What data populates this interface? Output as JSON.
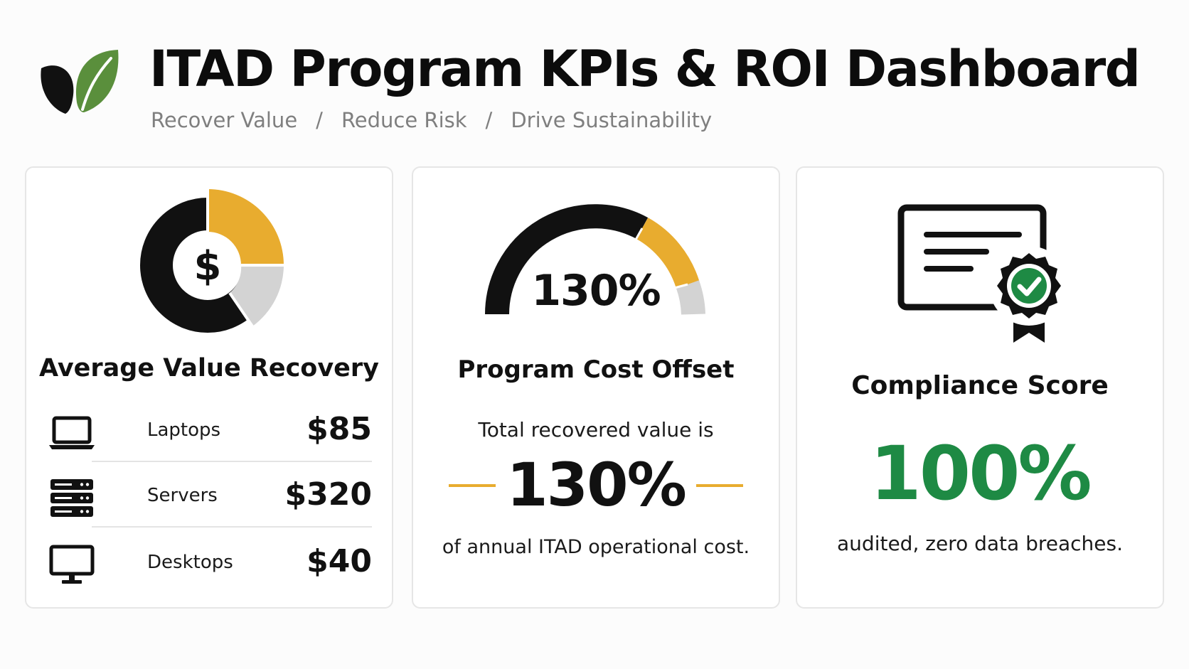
{
  "header": {
    "title": "ITAD Program KPIs & ROI Dashboard",
    "tagline": [
      "Recover Value",
      "Reduce Risk",
      "Drive Sustainability"
    ],
    "separator": "/",
    "logo_icon": "leaf-icon"
  },
  "colors": {
    "black": "#111111",
    "accent_yellow": "#e8ac2f",
    "neutral_gray": "#d3d3d3",
    "success_green": "#1e8a44",
    "leaf_green": "#5a8f3c"
  },
  "value_recovery": {
    "title": "Average Value Recovery",
    "chart_icon": "dollar-donut-icon",
    "items": [
      {
        "icon": "laptop-icon",
        "label": "Laptops",
        "value": "$85"
      },
      {
        "icon": "server-icon",
        "label": "Servers",
        "value": "$320"
      },
      {
        "icon": "desktop-icon",
        "label": "Desktops",
        "value": "$40"
      }
    ]
  },
  "cost_offset": {
    "title": "Program Cost Offset",
    "gauge_value": "130%",
    "intro": "Total recovered value is",
    "value": "130%",
    "outro": "of annual ITAD operational cost."
  },
  "compliance": {
    "title": "Compliance Score",
    "icon": "certificate-badge-icon",
    "value": "100%",
    "caption": "audited, zero data breaches."
  }
}
